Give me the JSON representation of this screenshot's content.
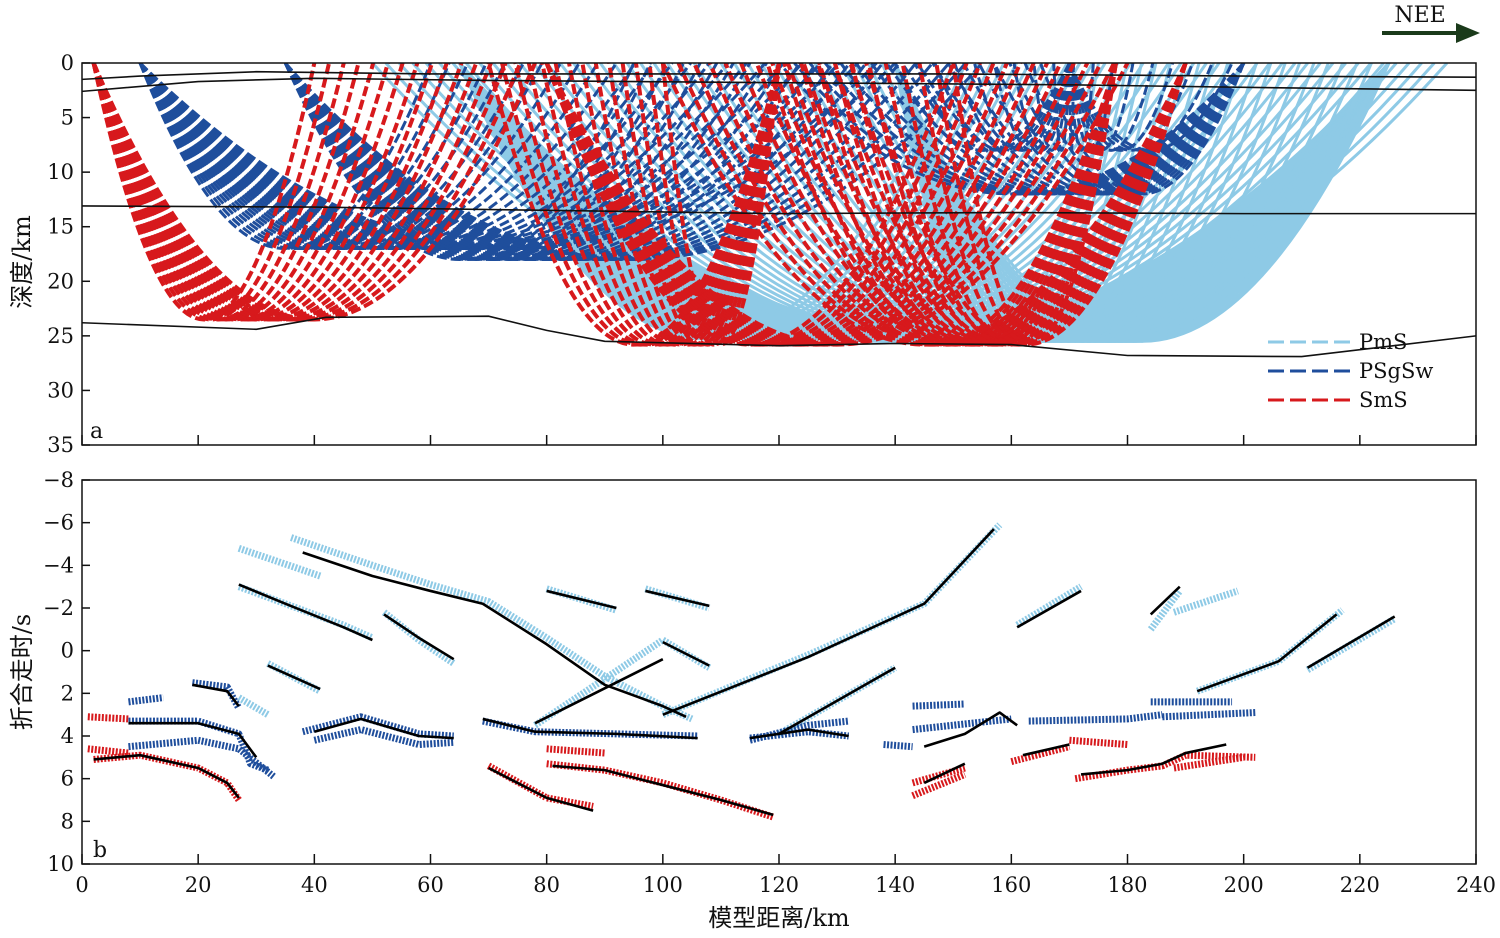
{
  "direction_label": "NEE",
  "panel_a": {
    "letter": "a",
    "ylabel": "深度/km",
    "xlim": [
      0,
      240
    ],
    "ylim": [
      0,
      35
    ],
    "y_ticks": [
      0,
      5,
      10,
      15,
      20,
      25,
      30,
      35
    ],
    "legend": [
      {
        "label": "PmS",
        "color": "#8ecae6"
      },
      {
        "label": "PSgSw",
        "color": "#1f4e9c"
      },
      {
        "label": "SmS",
        "color": "#d7191c"
      }
    ],
    "interfaces": [
      [
        [
          0,
          1.5
        ],
        [
          10,
          1.2
        ],
        [
          30,
          0.8
        ],
        [
          60,
          1
        ],
        [
          100,
          1
        ],
        [
          150,
          1
        ],
        [
          200,
          1.2
        ],
        [
          240,
          1.3
        ]
      ],
      [
        [
          0,
          2.6
        ],
        [
          20,
          1.7
        ],
        [
          40,
          1.4
        ],
        [
          70,
          1.6
        ],
        [
          120,
          1.8
        ],
        [
          170,
          2
        ],
        [
          210,
          2.3
        ],
        [
          240,
          2.5
        ]
      ],
      [
        [
          0,
          13.1
        ],
        [
          40,
          13.2
        ],
        [
          80,
          13.5
        ],
        [
          120,
          13.8
        ],
        [
          160,
          13.7
        ],
        [
          200,
          13.8
        ],
        [
          240,
          13.8
        ]
      ],
      [
        [
          0,
          23.8
        ],
        [
          30,
          24.4
        ],
        [
          42,
          23.3
        ],
        [
          70,
          23.2
        ],
        [
          80,
          24.5
        ],
        [
          90,
          25.5
        ],
        [
          120,
          25.9
        ],
        [
          140,
          25.7
        ],
        [
          160,
          25.8
        ],
        [
          180,
          26.8
        ],
        [
          210,
          26.9
        ],
        [
          240,
          25
        ]
      ]
    ]
  },
  "panel_b": {
    "letter": "b",
    "xlabel": "模型距离/km",
    "ylabel": "折合走时/s",
    "xlim": [
      0,
      240
    ],
    "ylim": [
      -8,
      10
    ],
    "x_ticks": [
      0,
      20,
      40,
      60,
      80,
      100,
      120,
      140,
      160,
      180,
      200,
      220,
      240
    ],
    "y_ticks": [
      -8,
      -6,
      -4,
      -2,
      0,
      2,
      4,
      6,
      8,
      10
    ]
  },
  "chart_data": {
    "type": "scatter",
    "xlabel": "模型距离/km",
    "ylabel": "折合走时/s",
    "series": [
      {
        "name": "PmS",
        "color": "#8ecae6",
        "segments": [
          [
            [
              27,
              -4.8
            ],
            [
              41,
              -3.5
            ]
          ],
          [
            [
              36,
              -5.3
            ],
            [
              50,
              -4
            ],
            [
              60,
              -3.1
            ],
            [
              70,
              -2.3
            ],
            [
              80,
              -0.6
            ],
            [
              90,
              1.2
            ],
            [
              100,
              2.6
            ],
            [
              105,
              3.2
            ]
          ],
          [
            [
              27,
              -3
            ],
            [
              35,
              -2.2
            ],
            [
              45,
              -1.2
            ],
            [
              50,
              -0.6
            ]
          ],
          [
            [
              52,
              -1.8
            ],
            [
              58,
              -0.5
            ],
            [
              64,
              0.6
            ]
          ],
          [
            [
              80,
              -2.9
            ],
            [
              92,
              -1.9
            ]
          ],
          [
            [
              97,
              -2.9
            ],
            [
              108,
              -2
            ]
          ],
          [
            [
              100,
              -0.5
            ],
            [
              108,
              0.8
            ]
          ],
          [
            [
              78,
              3.5
            ],
            [
              100,
              -0.5
            ]
          ],
          [
            [
              100,
              3
            ],
            [
              125,
              0.2
            ],
            [
              145,
              -2.2
            ],
            [
              158,
              -5.9
            ]
          ],
          [
            [
              120,
              3.9
            ],
            [
              140,
              0.8
            ]
          ],
          [
            [
              32,
              0.6
            ],
            [
              41,
              1.9
            ]
          ],
          [
            [
              27,
              2.2
            ],
            [
              32,
              3
            ]
          ],
          [
            [
              161,
              -1.2
            ],
            [
              172,
              -3
            ]
          ],
          [
            [
              184,
              -1
            ],
            [
              189,
              -2.8
            ]
          ],
          [
            [
              188,
              -1.8
            ],
            [
              199,
              -2.8
            ]
          ],
          [
            [
              192,
              1.9
            ],
            [
              206,
              0.5
            ],
            [
              217,
              -1.9
            ]
          ],
          [
            [
              211,
              0.9
            ],
            [
              226,
              -1.5
            ]
          ]
        ]
      },
      {
        "name": "PSgSw",
        "color": "#1f4e9c",
        "segments": [
          [
            [
              8,
              2.4
            ],
            [
              14,
              2.2
            ]
          ],
          [
            [
              8,
              3.3
            ],
            [
              20,
              3.3
            ],
            [
              27,
              3.9
            ],
            [
              29,
              5.3
            ],
            [
              32,
              5.6
            ]
          ],
          [
            [
              8,
              4.5
            ],
            [
              20,
              4.2
            ],
            [
              27,
              4.6
            ],
            [
              33,
              5.9
            ]
          ],
          [
            [
              19,
              1.5
            ],
            [
              25,
              1.7
            ],
            [
              27,
              2.7
            ]
          ],
          [
            [
              38,
              3.8
            ],
            [
              48,
              3.1
            ],
            [
              58,
              3.9
            ],
            [
              64,
              4
            ]
          ],
          [
            [
              40,
              4.2
            ],
            [
              48,
              3.7
            ],
            [
              58,
              4.4
            ],
            [
              64,
              4.3
            ]
          ],
          [
            [
              69,
              3.3
            ],
            [
              78,
              3.8
            ],
            [
              92,
              3.9
            ],
            [
              106,
              4
            ]
          ],
          [
            [
              115,
              4.2
            ],
            [
              125,
              3.5
            ],
            [
              132,
              3.3
            ]
          ],
          [
            [
              115,
              4.1
            ],
            [
              125,
              3.8
            ],
            [
              132,
              4
            ]
          ],
          [
            [
              138,
              4.4
            ],
            [
              143,
              4.5
            ]
          ],
          [
            [
              143,
              2.6
            ],
            [
              152,
              2.5
            ]
          ],
          [
            [
              143,
              3.7
            ],
            [
              160,
              3.2
            ]
          ],
          [
            [
              163,
              3.3
            ],
            [
              180,
              3.2
            ],
            [
              186,
              3
            ]
          ],
          [
            [
              184,
              2.4
            ],
            [
              198,
              2.4
            ]
          ],
          [
            [
              186,
              3.1
            ],
            [
              202,
              2.9
            ]
          ]
        ]
      },
      {
        "name": "SmS",
        "color": "#d7191c",
        "segments": [
          [
            [
              1,
              3.1
            ],
            [
              8,
              3.2
            ]
          ],
          [
            [
              1,
              4.6
            ],
            [
              8,
              4.8
            ]
          ],
          [
            [
              2,
              5.1
            ],
            [
              10,
              4.9
            ],
            [
              20,
              5.5
            ],
            [
              25,
              6.2
            ],
            [
              27,
              7
            ]
          ],
          [
            [
              70,
              5.4
            ],
            [
              80,
              6.9
            ],
            [
              88,
              7.3
            ]
          ],
          [
            [
              80,
              5.3
            ],
            [
              90,
              5.6
            ],
            [
              100,
              6.2
            ],
            [
              110,
              7
            ],
            [
              119,
              7.8
            ]
          ],
          [
            [
              80,
              4.6
            ],
            [
              90,
              4.8
            ]
          ],
          [
            [
              143,
              6.8
            ],
            [
              152,
              5.8
            ]
          ],
          [
            [
              143,
              6.2
            ],
            [
              152,
              5.5
            ]
          ],
          [
            [
              160,
              5.2
            ],
            [
              170,
              4.5
            ]
          ],
          [
            [
              170,
              4.2
            ],
            [
              180,
              4.4
            ]
          ],
          [
            [
              171,
              6
            ],
            [
              180,
              5.6
            ],
            [
              186,
              5.4
            ],
            [
              190,
              4.9
            ],
            [
              202,
              5
            ]
          ],
          [
            [
              188,
              5.5
            ],
            [
              200,
              5
            ]
          ]
        ]
      },
      {
        "name": "",
        "color": "#000000",
        "segments": [
          [
            [
              2,
              5.1
            ],
            [
              10,
              4.9
            ],
            [
              20,
              5.5
            ],
            [
              25,
              6.2
            ],
            [
              27,
              6.9
            ]
          ],
          [
            [
              38,
              -4.6
            ],
            [
              50,
              -3.5
            ],
            [
              60,
              -2.8
            ],
            [
              69,
              -2.2
            ],
            [
              80,
              -0.3
            ],
            [
              90,
              1.6
            ],
            [
              100,
              2.6
            ],
            [
              104,
              3.1
            ]
          ],
          [
            [
              27,
              -3.1
            ],
            [
              35,
              -2.2
            ],
            [
              45,
              -1.1
            ],
            [
              50,
              -0.5
            ]
          ],
          [
            [
              52,
              -1.7
            ],
            [
              58,
              -0.6
            ],
            [
              64,
              0.4
            ]
          ],
          [
            [
              80,
              -2.8
            ],
            [
              92,
              -2
            ]
          ],
          [
            [
              97,
              -2.8
            ],
            [
              108,
              -2.1
            ]
          ],
          [
            [
              100,
              -0.4
            ],
            [
              108,
              0.7
            ]
          ],
          [
            [
              78,
              3.4
            ],
            [
              100,
              0.4
            ]
          ],
          [
            [
              100,
              3
            ],
            [
              125,
              0.3
            ],
            [
              145,
              -2.2
            ],
            [
              157,
              -5.7
            ]
          ],
          [
            [
              120,
              3.9
            ],
            [
              140,
              0.8
            ]
          ],
          [
            [
              32,
              0.7
            ],
            [
              41,
              1.8
            ]
          ],
          [
            [
              40,
              3.8
            ],
            [
              48,
              3.2
            ],
            [
              58,
              4
            ],
            [
              64,
              4.1
            ]
          ],
          [
            [
              69,
              3.2
            ],
            [
              78,
              3.8
            ],
            [
              92,
              3.9
            ],
            [
              106,
              4.1
            ]
          ],
          [
            [
              70,
              5.5
            ],
            [
              80,
              6.9
            ],
            [
              88,
              7.5
            ]
          ],
          [
            [
              81,
              5.4
            ],
            [
              90,
              5.6
            ],
            [
              100,
              6.3
            ],
            [
              110,
              7
            ],
            [
              119,
              7.7
            ]
          ],
          [
            [
              115,
              4.1
            ],
            [
              125,
              3.7
            ],
            [
              132,
              4
            ]
          ],
          [
            [
              145,
              6.2
            ],
            [
              152,
              5.3
            ]
          ],
          [
            [
              145,
              4.5
            ],
            [
              152,
              3.9
            ],
            [
              158,
              2.9
            ],
            [
              161,
              3.5
            ]
          ],
          [
            [
              162,
              4.9
            ],
            [
              170,
              4.4
            ]
          ],
          [
            [
              172,
              5.8
            ],
            [
              180,
              5.6
            ],
            [
              186,
              5.3
            ],
            [
              190,
              4.8
            ],
            [
              197,
              4.4
            ]
          ],
          [
            [
              161,
              -1.1
            ],
            [
              172,
              -2.8
            ]
          ],
          [
            [
              192,
              1.9
            ],
            [
              206,
              0.5
            ],
            [
              216,
              -1.7
            ]
          ],
          [
            [
              211,
              0.8
            ],
            [
              226,
              -1.6
            ]
          ],
          [
            [
              184,
              -1.7
            ],
            [
              189,
              -3
            ]
          ],
          [
            [
              8,
              3.4
            ],
            [
              20,
              3.4
            ],
            [
              27,
              3.9
            ],
            [
              30,
              5
            ]
          ],
          [
            [
              19,
              1.6
            ],
            [
              25,
              1.9
            ],
            [
              27,
              2.6
            ]
          ]
        ]
      }
    ]
  }
}
